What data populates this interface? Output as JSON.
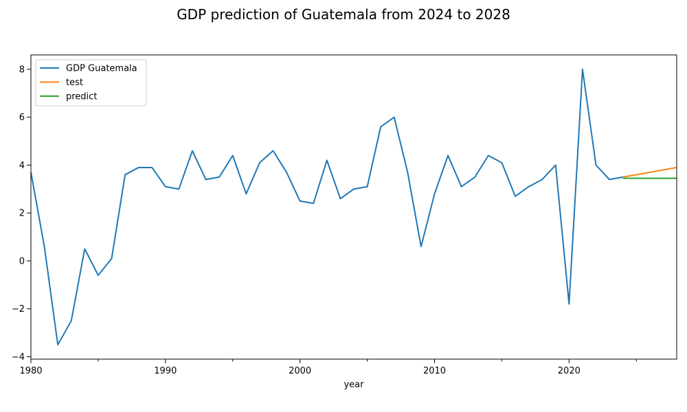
{
  "chart_data": {
    "type": "line",
    "title": "GDP prediction of Guatemala from 2024 to 2028",
    "xlabel": "year",
    "ylabel": "",
    "xlim": [
      1980,
      2028
    ],
    "ylim": [
      -4.1,
      8.6
    ],
    "x_ticks": [
      1980,
      1990,
      2000,
      2010,
      2020
    ],
    "x_minor_ticks": [
      1985,
      1995,
      2005,
      2015,
      2025
    ],
    "y_ticks": [
      -4,
      -2,
      0,
      2,
      4,
      6,
      8
    ],
    "y_tick_labels": [
      "−4",
      "−2",
      "0",
      "2",
      "4",
      "6",
      "8"
    ],
    "legend_position": "top-left",
    "grid": false,
    "series": [
      {
        "name": "GDP Guatemala",
        "color": "#1f77b4",
        "x": [
          1980,
          1981,
          1982,
          1983,
          1984,
          1985,
          1986,
          1987,
          1988,
          1989,
          1990,
          1991,
          1992,
          1993,
          1994,
          1995,
          1996,
          1997,
          1998,
          1999,
          2000,
          2001,
          2002,
          2003,
          2004,
          2005,
          2006,
          2007,
          2008,
          2009,
          2010,
          2011,
          2012,
          2013,
          2014,
          2015,
          2016,
          2017,
          2018,
          2019,
          2020,
          2021,
          2022,
          2023,
          2024
        ],
        "values": [
          3.7,
          0.6,
          -3.5,
          -2.5,
          0.5,
          -0.6,
          0.1,
          3.6,
          3.9,
          3.9,
          3.1,
          3.0,
          4.6,
          3.4,
          3.5,
          4.4,
          2.8,
          4.1,
          4.6,
          3.7,
          2.5,
          2.4,
          4.2,
          2.6,
          3.0,
          3.1,
          5.6,
          6.0,
          3.7,
          0.6,
          2.8,
          4.4,
          3.1,
          3.5,
          4.4,
          4.1,
          2.7,
          3.1,
          3.4,
          4.0,
          -1.8,
          8.0,
          4.0,
          3.4,
          3.5
        ]
      },
      {
        "name": "test",
        "color": "#ff7f0e",
        "x": [
          2024,
          2028
        ],
        "values": [
          3.5,
          3.9
        ]
      },
      {
        "name": "predict",
        "color": "#2ca02c",
        "x": [
          2024,
          2028
        ],
        "values": [
          3.45,
          3.45
        ]
      }
    ]
  }
}
